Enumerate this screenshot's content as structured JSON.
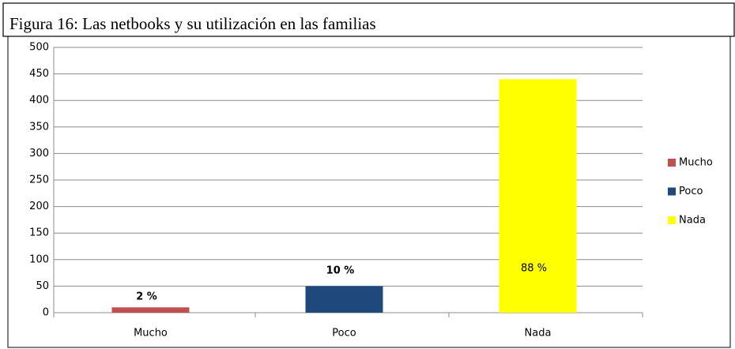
{
  "chart_data": {
    "type": "bar",
    "title": "Figura 16: Las netbooks y su utilización en las familias",
    "categories": [
      "Mucho",
      "Poco",
      "Nada"
    ],
    "values": [
      10,
      50,
      440
    ],
    "colors": [
      "#c0504d",
      "#1f497d",
      "#ffff00"
    ],
    "annotations": [
      "2 %",
      "10 %",
      "88 %"
    ],
    "ylim": [
      0,
      500
    ],
    "yticks": [
      0,
      50,
      100,
      150,
      200,
      250,
      300,
      350,
      400,
      450,
      500
    ],
    "grid": true,
    "legend": "right"
  }
}
